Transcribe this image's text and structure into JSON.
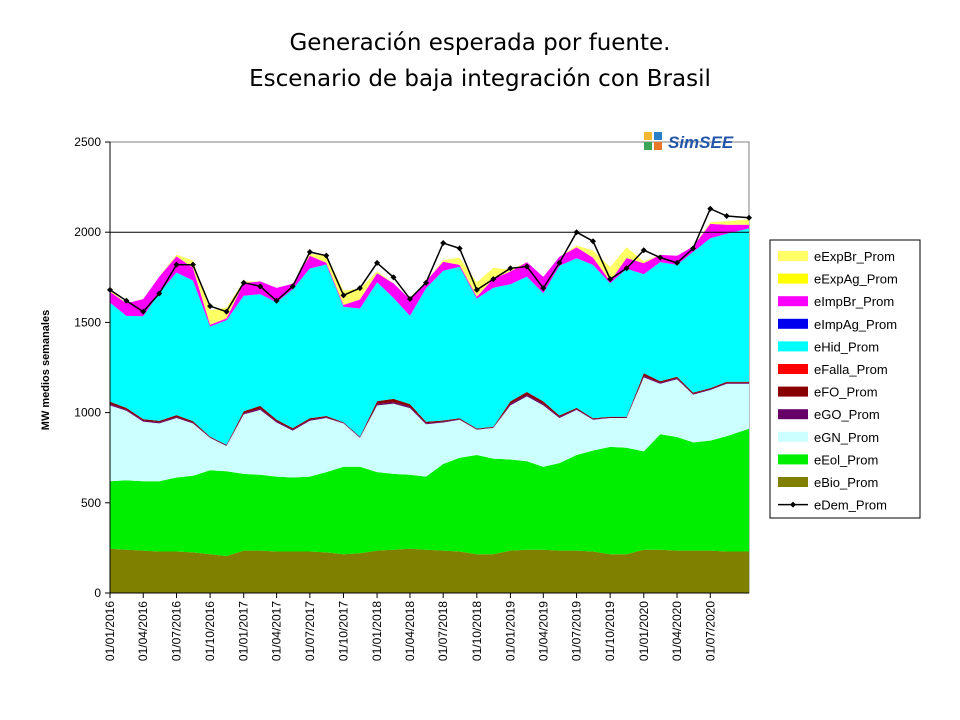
{
  "slide": {
    "title_line1": "Generación esperada por fuente.",
    "title_line2": "Escenario de baja integración con Brasil"
  },
  "logo": {
    "text": "SimSEE",
    "colors": [
      "#f2b632",
      "#2a7fc6",
      "#3aa655",
      "#e8792b"
    ]
  },
  "chart_data": {
    "type": "area",
    "stacked": true,
    "title": "Generación esperada por fuente. Escenario de baja integración con Brasil",
    "ylabel": "MW medios semanales",
    "xlabel": "",
    "ylim": [
      0,
      2500
    ],
    "yticks": [
      0,
      500,
      1000,
      1500,
      2000,
      2500
    ],
    "x_range": [
      "01/01/2016",
      "15/10/2020"
    ],
    "xticks": [
      "01/01/2016",
      "01/04/2016",
      "01/07/2016",
      "01/10/2016",
      "01/01/2017",
      "01/04/2017",
      "01/07/2017",
      "01/10/2017",
      "01/01/2018",
      "01/04/2018",
      "01/07/2018",
      "01/10/2018",
      "01/01/2019",
      "01/04/2019",
      "01/07/2019",
      "01/10/2019",
      "01/01/2020",
      "01/04/2020",
      "01/07/2020"
    ],
    "gridlines_y": [
      2000
    ],
    "legend_position": "right",
    "x": [
      "01/01/2016",
      "15/02/2016",
      "01/04/2016",
      "15/05/2016",
      "01/07/2016",
      "15/08/2016",
      "01/10/2016",
      "15/11/2016",
      "01/01/2017",
      "15/02/2017",
      "01/04/2017",
      "15/05/2017",
      "01/07/2017",
      "15/08/2017",
      "01/10/2017",
      "15/11/2017",
      "01/01/2018",
      "15/02/2018",
      "01/04/2018",
      "15/05/2018",
      "01/07/2018",
      "15/08/2018",
      "01/10/2018",
      "15/11/2018",
      "01/01/2019",
      "15/02/2019",
      "01/04/2019",
      "15/05/2019",
      "01/07/2019",
      "15/08/2019",
      "01/10/2019",
      "15/11/2019",
      "01/01/2020",
      "15/02/2020",
      "01/04/2020",
      "15/05/2020",
      "01/07/2020",
      "15/08/2020",
      "15/10/2020"
    ],
    "series": [
      {
        "name": "eBio_Prom",
        "color": "#808000",
        "values": [
          245,
          240,
          235,
          230,
          230,
          225,
          215,
          205,
          235,
          235,
          230,
          230,
          230,
          225,
          215,
          220,
          235,
          240,
          245,
          240,
          235,
          230,
          215,
          215,
          235,
          240,
          240,
          235,
          235,
          230,
          215,
          215,
          240,
          240,
          235,
          235,
          235,
          230,
          230
        ]
      },
      {
        "name": "eEol_Prom",
        "color": "#00ee00",
        "values": [
          375,
          385,
          385,
          390,
          410,
          425,
          465,
          470,
          425,
          420,
          415,
          410,
          415,
          445,
          485,
          480,
          435,
          420,
          410,
          405,
          480,
          520,
          550,
          530,
          505,
          490,
          460,
          485,
          530,
          560,
          595,
          590,
          545,
          640,
          630,
          600,
          610,
          640,
          680
        ]
      },
      {
        "name": "eGN_Prom",
        "color": "#ccffff",
        "values": [
          420,
          385,
          330,
          320,
          330,
          290,
          180,
          140,
          330,
          360,
          300,
          260,
          310,
          300,
          240,
          160,
          370,
          390,
          370,
          290,
          230,
          210,
          140,
          170,
          300,
          360,
          340,
          250,
          250,
          170,
          160,
          165,
          410,
          280,
          320,
          265,
          280,
          290,
          250
        ]
      },
      {
        "name": "eGO_Prom",
        "color": "#660066",
        "values": [
          8,
          6,
          6,
          6,
          6,
          5,
          3,
          3,
          6,
          7,
          6,
          6,
          6,
          5,
          3,
          3,
          8,
          8,
          8,
          6,
          5,
          4,
          3,
          3,
          8,
          8,
          8,
          6,
          5,
          4,
          3,
          3,
          8,
          6,
          6,
          5,
          5,
          5,
          5
        ]
      },
      {
        "name": "eFO_Prom",
        "color": "#880000",
        "values": [
          12,
          10,
          8,
          8,
          10,
          8,
          4,
          4,
          12,
          15,
          10,
          8,
          8,
          6,
          4,
          4,
          15,
          18,
          14,
          8,
          6,
          5,
          4,
          4,
          14,
          16,
          14,
          8,
          6,
          5,
          4,
          4,
          15,
          8,
          8,
          6,
          6,
          6,
          6
        ]
      },
      {
        "name": "eFalla_Prom",
        "color": "#ff0000",
        "values": [
          0,
          0,
          0,
          0,
          0,
          0,
          0,
          0,
          0,
          0,
          0,
          0,
          0,
          0,
          0,
          0,
          0,
          0,
          0,
          0,
          0,
          0,
          0,
          0,
          0,
          0,
          0,
          0,
          0,
          0,
          0,
          0,
          0,
          0,
          0,
          0,
          0,
          0,
          0
        ]
      },
      {
        "name": "eHid_Prom",
        "color": "#00ffff",
        "values": [
          550,
          510,
          570,
          710,
          790,
          780,
          610,
          690,
          640,
          620,
          650,
          770,
          830,
          840,
          640,
          710,
          660,
          560,
          490,
          740,
          830,
          840,
          720,
          770,
          650,
          640,
          600,
          830,
          830,
          850,
          740,
          820,
          550,
          660,
          620,
          780,
          830,
          820,
          850
        ]
      },
      {
        "name": "eImpAg_Prom",
        "color": "#0000ee",
        "values": [
          0,
          0,
          0,
          0,
          0,
          0,
          0,
          0,
          0,
          0,
          0,
          0,
          0,
          0,
          0,
          0,
          0,
          0,
          0,
          0,
          0,
          0,
          0,
          0,
          0,
          0,
          0,
          0,
          0,
          0,
          0,
          0,
          0,
          0,
          0,
          0,
          0,
          0,
          0
        ]
      },
      {
        "name": "eImpBr_Prom",
        "color": "#ff00ff",
        "values": [
          60,
          70,
          95,
          90,
          90,
          70,
          10,
          10,
          70,
          70,
          80,
          30,
          70,
          10,
          10,
          50,
          50,
          80,
          90,
          40,
          50,
          10,
          10,
          50,
          70,
          80,
          90,
          50,
          60,
          40,
          10,
          60,
          60,
          40,
          50,
          30,
          80,
          50,
          20
        ]
      },
      {
        "name": "eExpAg_Prom",
        "color": "#ffff00",
        "values": [
          0,
          0,
          0,
          0,
          0,
          0,
          0,
          0,
          0,
          0,
          0,
          0,
          0,
          0,
          0,
          0,
          0,
          0,
          0,
          0,
          0,
          0,
          0,
          0,
          0,
          0,
          0,
          0,
          0,
          0,
          0,
          0,
          0,
          0,
          0,
          0,
          0,
          0,
          0
        ]
      },
      {
        "name": "eExpBr_Prom",
        "color": "#ffff66",
        "values": [
          10,
          0,
          0,
          0,
          10,
          40,
          80,
          60,
          10,
          0,
          0,
          0,
          10,
          40,
          80,
          60,
          10,
          0,
          0,
          0,
          10,
          40,
          80,
          60,
          10,
          0,
          0,
          0,
          10,
          40,
          80,
          60,
          10,
          0,
          0,
          0,
          10,
          20,
          30
        ]
      }
    ],
    "line_series": {
      "name": "eDem_Prom",
      "color": "#000000",
      "marker": "diamond",
      "values": [
        1680,
        1620,
        1560,
        1660,
        1820,
        1820,
        1590,
        1560,
        1720,
        1700,
        1620,
        1700,
        1890,
        1870,
        1650,
        1690,
        1830,
        1750,
        1630,
        1720,
        1940,
        1910,
        1680,
        1740,
        1800,
        1810,
        1690,
        1830,
        2000,
        1950,
        1740,
        1800,
        1900,
        1860,
        1830,
        1910,
        2130,
        2090,
        2080
      ]
    },
    "legend": [
      "eExpBr_Prom",
      "eExpAg_Prom",
      "eImpBr_Prom",
      "eImpAg_Prom",
      "eHid_Prom",
      "eFalla_Prom",
      "eFO_Prom",
      "eGO_Prom",
      "eGN_Prom",
      "eEol_Prom",
      "eBio_Prom",
      "eDem_Prom"
    ]
  }
}
